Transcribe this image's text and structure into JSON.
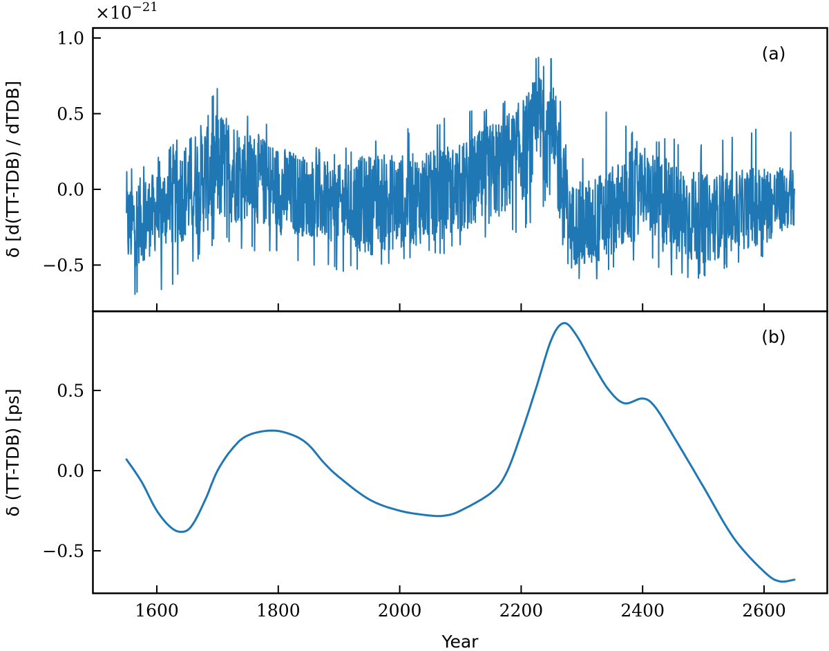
{
  "chart_data": [
    {
      "panel": "(a)",
      "type": "line",
      "title": "",
      "xlabel": "",
      "ylabel": "δ [d(TT-TDB) / dTDB]",
      "y_scale_note": "×10^-21",
      "y_scale_base": "×10",
      "y_scale_exp": "−21",
      "xlim": [
        1550,
        2650
      ],
      "ylim": [
        -0.75,
        1.07
      ],
      "x_ticks": [
        1600,
        1800,
        2000,
        2200,
        2400,
        2600
      ],
      "y_ticks": [
        -0.5,
        0.0,
        0.5,
        1.0
      ],
      "y_tick_labels": [
        "−0.5",
        "0.0",
        "0.5",
        "1.0"
      ],
      "grid": false,
      "legend": null,
      "color": "#1f77b4",
      "description": "High-frequency noisy series; slow envelope (trend) given below with approximate noise amplitude",
      "x": [
        1550,
        1600,
        1650,
        1700,
        1750,
        1800,
        1850,
        1900,
        1950,
        2000,
        2050,
        2100,
        2150,
        2200,
        2240,
        2260,
        2280,
        2300,
        2350,
        2400,
        2450,
        2500,
        2550,
        2600,
        2650
      ],
      "trend": [
        -0.25,
        -0.15,
        0.0,
        0.15,
        0.1,
        0.0,
        -0.05,
        -0.1,
        -0.1,
        -0.08,
        -0.05,
        0.0,
        0.1,
        0.25,
        0.45,
        0.2,
        -0.2,
        -0.25,
        -0.15,
        0.0,
        -0.15,
        -0.2,
        -0.15,
        -0.1,
        -0.05
      ],
      "upper_envelope": [
        0.15,
        0.2,
        0.45,
        0.7,
        0.5,
        0.4,
        0.3,
        0.25,
        0.35,
        0.4,
        0.45,
        0.5,
        0.55,
        0.7,
        0.98,
        0.75,
        0.1,
        0.2,
        0.6,
        0.3,
        0.35,
        0.3,
        0.35,
        0.45,
        0.4
      ],
      "lower_envelope": [
        -0.7,
        -0.72,
        -0.55,
        -0.35,
        -0.4,
        -0.45,
        -0.5,
        -0.55,
        -0.55,
        -0.5,
        -0.45,
        -0.4,
        -0.35,
        -0.3,
        -0.1,
        -0.3,
        -0.55,
        -0.65,
        -0.55,
        -0.45,
        -0.6,
        -0.6,
        -0.5,
        -0.45,
        -0.3
      ],
      "annotations": [
        "(a)"
      ]
    },
    {
      "panel": "(b)",
      "type": "line",
      "title": "",
      "xlabel": "Year",
      "ylabel": "δ (TT-TDB) [ps]",
      "xlim": [
        1550,
        2650
      ],
      "ylim": [
        -0.76,
        0.93
      ],
      "x_ticks": [
        1600,
        1800,
        2000,
        2200,
        2400,
        2600
      ],
      "x_tick_labels": [
        "1600",
        "1800",
        "2000",
        "2200",
        "2400",
        "2600"
      ],
      "y_ticks": [
        -0.5,
        0.0,
        0.5
      ],
      "y_tick_labels": [
        "−0.5",
        "0.0",
        "0.5"
      ],
      "grid": false,
      "legend": null,
      "color": "#1f77b4",
      "x": [
        1550,
        1575,
        1600,
        1625,
        1645,
        1660,
        1680,
        1700,
        1725,
        1750,
        1790,
        1825,
        1850,
        1875,
        1900,
        1950,
        2000,
        2050,
        2075,
        2100,
        2150,
        2175,
        2200,
        2225,
        2250,
        2270,
        2290,
        2320,
        2345,
        2370,
        2400,
        2420,
        2450,
        2500,
        2550,
        2600,
        2625,
        2650
      ],
      "y": [
        0.07,
        -0.07,
        -0.25,
        -0.36,
        -0.38,
        -0.33,
        -0.18,
        0.0,
        0.14,
        0.22,
        0.25,
        0.22,
        0.16,
        0.05,
        -0.04,
        -0.18,
        -0.25,
        -0.28,
        -0.28,
        -0.25,
        -0.14,
        -0.02,
        0.23,
        0.52,
        0.82,
        0.92,
        0.85,
        0.65,
        0.5,
        0.42,
        0.45,
        0.4,
        0.22,
        -0.1,
        -0.42,
        -0.63,
        -0.69,
        -0.68
      ],
      "annotations": [
        "(b)"
      ]
    }
  ],
  "figure": {
    "panel_a_label": "(a)",
    "panel_b_label": "(b)",
    "scale_x": "×10",
    "scale_exp": "−21",
    "ylabel_a": "δ [d(TT-TDB) / dTDB]",
    "ylabel_b": "δ (TT-TDB) [ps]",
    "xlabel": "Year",
    "x_tick_labels": [
      "1600",
      "1800",
      "2000",
      "2200",
      "2400",
      "2600"
    ],
    "ya_tick_labels": [
      "1.0",
      "0.5",
      "0.0",
      "−0.5"
    ],
    "yb_tick_labels": [
      "0.5",
      "0.0",
      "−0.5"
    ]
  }
}
